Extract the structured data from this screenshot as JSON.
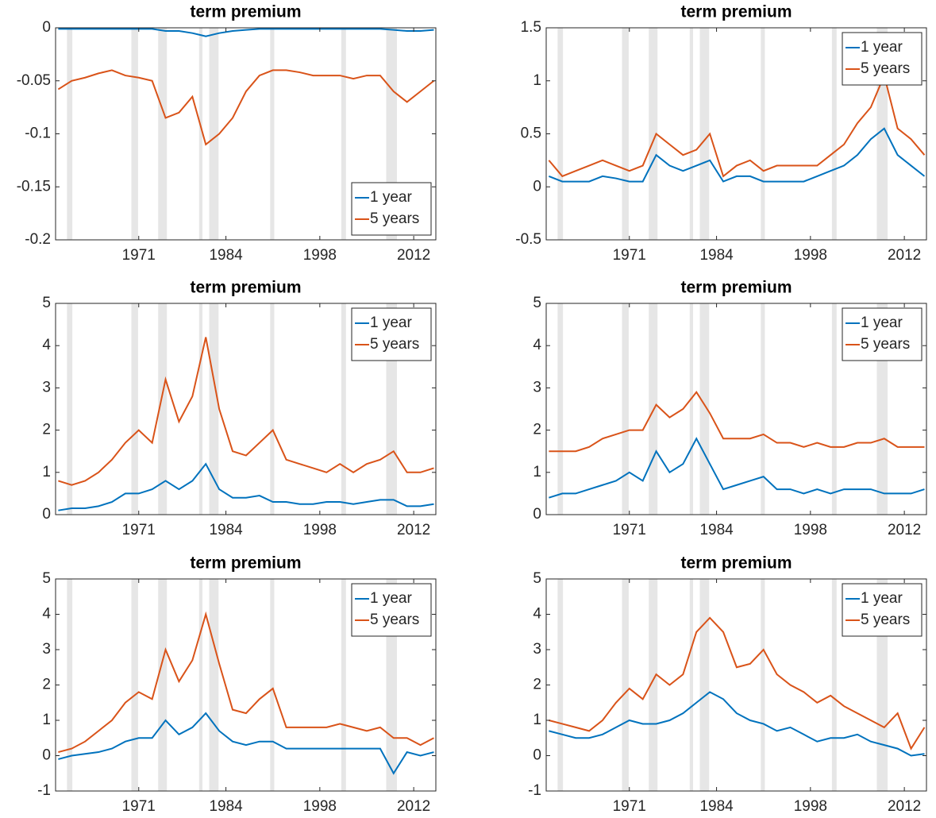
{
  "chart_data": [
    {
      "type": "line",
      "title": "term premium",
      "legend": "southeast",
      "xlim": [
        1958.6,
        2015.3
      ],
      "xticks": [
        1971,
        1984,
        1998,
        2012
      ],
      "ylim": [
        -0.2,
        0
      ],
      "yticks": [
        -0.2,
        -0.15,
        -0.1,
        -0.05,
        0
      ],
      "recessions": [
        [
          1960.3,
          1961.1
        ],
        [
          1969.9,
          1970.9
        ],
        [
          1973.9,
          1975.2
        ],
        [
          1980,
          1980.5
        ],
        [
          1981.5,
          1982.9
        ],
        [
          1990.6,
          1991.2
        ],
        [
          2001.2,
          2001.9
        ],
        [
          2007.9,
          2009.5
        ]
      ],
      "x": [
        1959,
        1961,
        1963,
        1965,
        1967,
        1969,
        1971,
        1973,
        1975,
        1977,
        1979,
        1981,
        1983,
        1985,
        1987,
        1989,
        1991,
        1993,
        1995,
        1997,
        1999,
        2001,
        2003,
        2005,
        2007,
        2009,
        2011,
        2013,
        2015
      ],
      "series": [
        {
          "name": "1 year",
          "color": "#0072BD",
          "values": [
            -0.001,
            -0.001,
            -0.001,
            -0.001,
            -0.001,
            -0.001,
            -0.001,
            -0.001,
            -0.003,
            -0.003,
            -0.005,
            -0.008,
            -0.005,
            -0.003,
            -0.002,
            -0.001,
            -0.001,
            -0.001,
            -0.001,
            -0.001,
            -0.001,
            -0.001,
            -0.001,
            -0.001,
            -0.001,
            -0.002,
            -0.003,
            -0.003,
            -0.002
          ]
        },
        {
          "name": "5 years",
          "color": "#D95319",
          "values": [
            -0.058,
            -0.05,
            -0.047,
            -0.043,
            -0.04,
            -0.045,
            -0.047,
            -0.05,
            -0.085,
            -0.08,
            -0.065,
            -0.11,
            -0.1,
            -0.085,
            -0.06,
            -0.045,
            -0.04,
            -0.04,
            -0.042,
            -0.045,
            -0.045,
            -0.045,
            -0.048,
            -0.045,
            -0.045,
            -0.06,
            -0.07,
            -0.06,
            -0.05
          ]
        }
      ]
    },
    {
      "type": "line",
      "title": "term premium",
      "legend": "northeast",
      "xlim": [
        1958.6,
        2015.3
      ],
      "xticks": [
        1971,
        1984,
        1998,
        2012
      ],
      "ylim": [
        -0.5,
        1.5
      ],
      "yticks": [
        -0.5,
        0,
        0.5,
        1,
        1.5
      ],
      "recessions": [
        [
          1960.3,
          1961.1
        ],
        [
          1969.9,
          1970.9
        ],
        [
          1973.9,
          1975.2
        ],
        [
          1980,
          1980.5
        ],
        [
          1981.5,
          1982.9
        ],
        [
          1990.6,
          1991.2
        ],
        [
          2001.2,
          2001.9
        ],
        [
          2007.9,
          2009.5
        ]
      ],
      "x": [
        1959,
        1961,
        1963,
        1965,
        1967,
        1969,
        1971,
        1973,
        1975,
        1977,
        1979,
        1981,
        1983,
        1985,
        1987,
        1989,
        1991,
        1993,
        1995,
        1997,
        1999,
        2001,
        2003,
        2005,
        2007,
        2009,
        2011,
        2013,
        2015
      ],
      "series": [
        {
          "name": "1 year",
          "color": "#0072BD",
          "values": [
            0.1,
            0.05,
            0.05,
            0.05,
            0.1,
            0.08,
            0.05,
            0.05,
            0.3,
            0.2,
            0.15,
            0.2,
            0.25,
            0.05,
            0.1,
            0.1,
            0.05,
            0.05,
            0.05,
            0.05,
            0.1,
            0.15,
            0.2,
            0.3,
            0.45,
            0.55,
            0.3,
            0.2,
            0.1
          ]
        },
        {
          "name": "5 years",
          "color": "#D95319",
          "values": [
            0.25,
            0.1,
            0.15,
            0.2,
            0.25,
            0.2,
            0.15,
            0.2,
            0.5,
            0.4,
            0.3,
            0.35,
            0.5,
            0.1,
            0.2,
            0.25,
            0.15,
            0.2,
            0.2,
            0.2,
            0.2,
            0.3,
            0.4,
            0.6,
            0.75,
            1.05,
            0.55,
            0.45,
            0.3
          ]
        }
      ]
    },
    {
      "type": "line",
      "title": "term premium",
      "legend": "northeast",
      "xlim": [
        1958.6,
        2015.3
      ],
      "xticks": [
        1971,
        1984,
        1998,
        2012
      ],
      "ylim": [
        0,
        5
      ],
      "yticks": [
        0,
        1,
        2,
        3,
        4,
        5
      ],
      "recessions": [
        [
          1960.3,
          1961.1
        ],
        [
          1969.9,
          1970.9
        ],
        [
          1973.9,
          1975.2
        ],
        [
          1980,
          1980.5
        ],
        [
          1981.5,
          1982.9
        ],
        [
          1990.6,
          1991.2
        ],
        [
          2001.2,
          2001.9
        ],
        [
          2007.9,
          2009.5
        ]
      ],
      "x": [
        1959,
        1961,
        1963,
        1965,
        1967,
        1969,
        1971,
        1973,
        1975,
        1977,
        1979,
        1981,
        1983,
        1985,
        1987,
        1989,
        1991,
        1993,
        1995,
        1997,
        1999,
        2001,
        2003,
        2005,
        2007,
        2009,
        2011,
        2013,
        2015
      ],
      "series": [
        {
          "name": "1 year",
          "color": "#0072BD",
          "values": [
            0.1,
            0.15,
            0.15,
            0.2,
            0.3,
            0.5,
            0.5,
            0.6,
            0.8,
            0.6,
            0.8,
            1.2,
            0.6,
            0.4,
            0.4,
            0.45,
            0.3,
            0.3,
            0.25,
            0.25,
            0.3,
            0.3,
            0.25,
            0.3,
            0.35,
            0.35,
            0.2,
            0.2,
            0.25
          ]
        },
        {
          "name": "5 years",
          "color": "#D95319",
          "values": [
            0.8,
            0.7,
            0.8,
            1.0,
            1.3,
            1.7,
            2.0,
            1.7,
            3.2,
            2.2,
            2.8,
            4.2,
            2.5,
            1.5,
            1.4,
            1.7,
            2.0,
            1.3,
            1.2,
            1.1,
            1.0,
            1.2,
            1.0,
            1.2,
            1.3,
            1.5,
            1.0,
            1.0,
            1.1
          ]
        }
      ]
    },
    {
      "type": "line",
      "title": "term premium",
      "legend": "northeast",
      "xlim": [
        1958.6,
        2015.3
      ],
      "xticks": [
        1971,
        1984,
        1998,
        2012
      ],
      "ylim": [
        0,
        5
      ],
      "yticks": [
        0,
        1,
        2,
        3,
        4,
        5
      ],
      "recessions": [
        [
          1960.3,
          1961.1
        ],
        [
          1969.9,
          1970.9
        ],
        [
          1973.9,
          1975.2
        ],
        [
          1980,
          1980.5
        ],
        [
          1981.5,
          1982.9
        ],
        [
          1990.6,
          1991.2
        ],
        [
          2001.2,
          2001.9
        ],
        [
          2007.9,
          2009.5
        ]
      ],
      "x": [
        1959,
        1961,
        1963,
        1965,
        1967,
        1969,
        1971,
        1973,
        1975,
        1977,
        1979,
        1981,
        1983,
        1985,
        1987,
        1989,
        1991,
        1993,
        1995,
        1997,
        1999,
        2001,
        2003,
        2005,
        2007,
        2009,
        2011,
        2013,
        2015
      ],
      "series": [
        {
          "name": "1 year",
          "color": "#0072BD",
          "values": [
            0.4,
            0.5,
            0.5,
            0.6,
            0.7,
            0.8,
            1.0,
            0.8,
            1.5,
            1.0,
            1.2,
            1.8,
            1.2,
            0.6,
            0.7,
            0.8,
            0.9,
            0.6,
            0.6,
            0.5,
            0.6,
            0.5,
            0.6,
            0.6,
            0.6,
            0.5,
            0.5,
            0.5,
            0.6
          ]
        },
        {
          "name": "5 years",
          "color": "#D95319",
          "values": [
            1.5,
            1.5,
            1.5,
            1.6,
            1.8,
            1.9,
            2.0,
            2.0,
            2.6,
            2.3,
            2.5,
            2.9,
            2.4,
            1.8,
            1.8,
            1.8,
            1.9,
            1.7,
            1.7,
            1.6,
            1.7,
            1.6,
            1.6,
            1.7,
            1.7,
            1.8,
            1.6,
            1.6,
            1.6
          ]
        }
      ]
    },
    {
      "type": "line",
      "title": "term premium",
      "legend": "northeast",
      "xlim": [
        1958.6,
        2015.3
      ],
      "xticks": [
        1971,
        1984,
        1998,
        2012
      ],
      "ylim": [
        -1,
        5
      ],
      "yticks": [
        -1,
        0,
        1,
        2,
        3,
        4,
        5
      ],
      "recessions": [
        [
          1960.3,
          1961.1
        ],
        [
          1969.9,
          1970.9
        ],
        [
          1973.9,
          1975.2
        ],
        [
          1980,
          1980.5
        ],
        [
          1981.5,
          1982.9
        ],
        [
          1990.6,
          1991.2
        ],
        [
          2001.2,
          2001.9
        ],
        [
          2007.9,
          2009.5
        ]
      ],
      "x": [
        1959,
        1961,
        1963,
        1965,
        1967,
        1969,
        1971,
        1973,
        1975,
        1977,
        1979,
        1981,
        1983,
        1985,
        1987,
        1989,
        1991,
        1993,
        1995,
        1997,
        1999,
        2001,
        2003,
        2005,
        2007,
        2009,
        2011,
        2013,
        2015
      ],
      "series": [
        {
          "name": "1 year",
          "color": "#0072BD",
          "values": [
            -0.1,
            0,
            0.05,
            0.1,
            0.2,
            0.4,
            0.5,
            0.5,
            1.0,
            0.6,
            0.8,
            1.2,
            0.7,
            0.4,
            0.3,
            0.4,
            0.4,
            0.2,
            0.2,
            0.2,
            0.2,
            0.2,
            0.2,
            0.2,
            0.2,
            -0.5,
            0.1,
            0.0,
            0.1
          ]
        },
        {
          "name": "5 years",
          "color": "#D95319",
          "values": [
            0.1,
            0.2,
            0.4,
            0.7,
            1.0,
            1.5,
            1.8,
            1.6,
            3.0,
            2.1,
            2.7,
            4.0,
            2.6,
            1.3,
            1.2,
            1.6,
            1.9,
            0.8,
            0.8,
            0.8,
            0.8,
            0.9,
            0.8,
            0.7,
            0.8,
            0.5,
            0.5,
            0.3,
            0.5
          ]
        }
      ]
    },
    {
      "type": "line",
      "title": "term premium",
      "legend": "northeast",
      "xlim": [
        1958.6,
        2015.3
      ],
      "xticks": [
        1971,
        1984,
        1998,
        2012
      ],
      "ylim": [
        -1,
        5
      ],
      "yticks": [
        -1,
        0,
        1,
        2,
        3,
        4,
        5
      ],
      "recessions": [
        [
          1960.3,
          1961.1
        ],
        [
          1969.9,
          1970.9
        ],
        [
          1973.9,
          1975.2
        ],
        [
          1980,
          1980.5
        ],
        [
          1981.5,
          1982.9
        ],
        [
          1990.6,
          1991.2
        ],
        [
          2001.2,
          2001.9
        ],
        [
          2007.9,
          2009.5
        ]
      ],
      "x": [
        1959,
        1961,
        1963,
        1965,
        1967,
        1969,
        1971,
        1973,
        1975,
        1977,
        1979,
        1981,
        1983,
        1985,
        1987,
        1989,
        1991,
        1993,
        1995,
        1997,
        1999,
        2001,
        2003,
        2005,
        2007,
        2009,
        2011,
        2013,
        2015
      ],
      "series": [
        {
          "name": "1 year",
          "color": "#0072BD",
          "values": [
            0.7,
            0.6,
            0.5,
            0.5,
            0.6,
            0.8,
            1.0,
            0.9,
            0.9,
            1.0,
            1.2,
            1.5,
            1.8,
            1.6,
            1.2,
            1.0,
            0.9,
            0.7,
            0.8,
            0.6,
            0.4,
            0.5,
            0.5,
            0.6,
            0.4,
            0.3,
            0.2,
            0.0,
            0.05
          ]
        },
        {
          "name": "5 years",
          "color": "#D95319",
          "values": [
            1.0,
            0.9,
            0.8,
            0.7,
            1.0,
            1.5,
            1.9,
            1.6,
            2.3,
            2.0,
            2.3,
            3.5,
            3.9,
            3.5,
            2.5,
            2.6,
            3.0,
            2.3,
            2.0,
            1.8,
            1.5,
            1.7,
            1.4,
            1.2,
            1.0,
            0.8,
            1.2,
            0.2,
            0.8
          ]
        }
      ]
    }
  ]
}
